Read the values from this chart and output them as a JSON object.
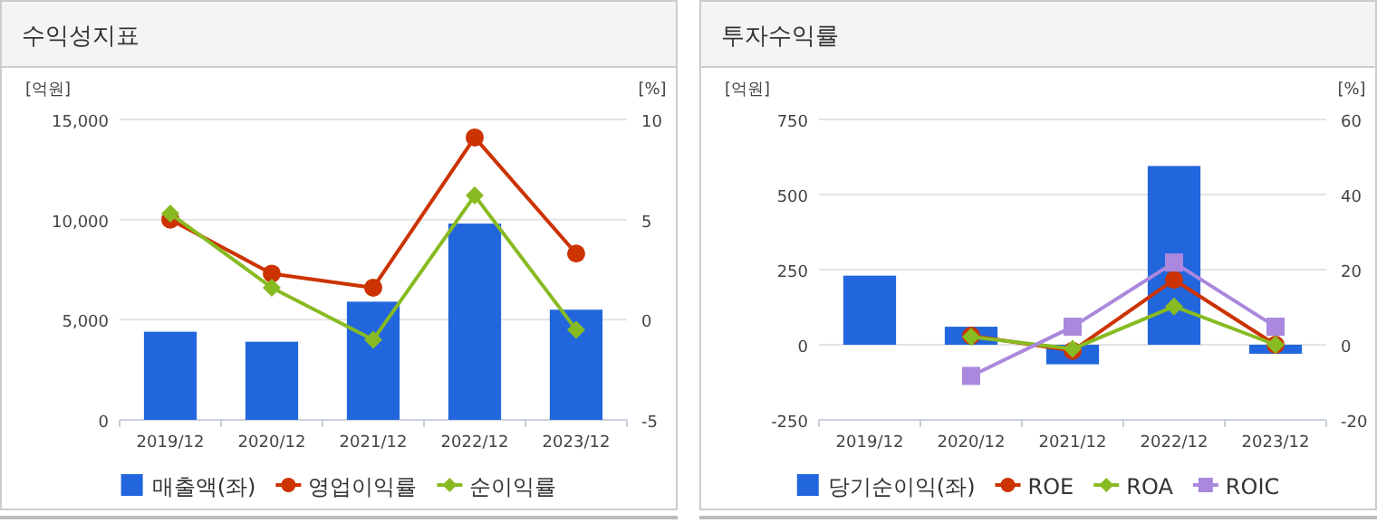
{
  "chart_data": [
    {
      "type": "bar",
      "title": "수익성지표",
      "ylabel": "[억원]",
      "y2label": "[%]",
      "categories": [
        "2019/12",
        "2020/12",
        "2021/12",
        "2022/12",
        "2023/12"
      ],
      "series": [
        {
          "name": "매출액(좌)",
          "color": "#2266dd",
          "values": [
            4400,
            3900,
            5900,
            9800,
            5500
          ]
        },
        {
          "name": "영업이익률",
          "type": "line",
          "axis": "y2",
          "marker": "circle",
          "color": "#cc3300",
          "values": [
            5.0,
            2.3,
            1.6,
            9.1,
            3.3
          ]
        },
        {
          "name": "순이익률",
          "type": "line",
          "axis": "y2",
          "marker": "diamond",
          "color": "#88bb22",
          "values": [
            5.3,
            1.6,
            -1.0,
            6.2,
            -0.5
          ]
        }
      ],
      "ylim": [
        0,
        15000
      ],
      "yticks": [
        0,
        {
          "value": 5000,
          "label": "5,000"
        },
        {
          "value": 10000,
          "label": "10,000"
        },
        {
          "value": 15000,
          "label": "15,000"
        }
      ],
      "y2lim": [
        -5,
        10
      ],
      "y2ticks": [
        -5,
        0,
        5,
        10
      ],
      "grid": "y",
      "legend": "bottom"
    },
    {
      "type": "bar",
      "title": "투자수익률",
      "ylabel": "[억원]",
      "y2label": "[%]",
      "categories": [
        "2019/12",
        "2020/12",
        "2021/12",
        "2022/12",
        "2023/12"
      ],
      "series": [
        {
          "name": "당기순이익(좌)",
          "color": "#2266dd",
          "values": [
            230,
            60,
            -65,
            595,
            -30
          ]
        },
        {
          "name": "ROE",
          "type": "line",
          "axis": "y2",
          "marker": "circle",
          "color": "#cc3300",
          "values": [
            null,
            2.4,
            -1.6,
            17.3,
            0
          ]
        },
        {
          "name": "ROA",
          "type": "line",
          "axis": "y2",
          "marker": "diamond",
          "color": "#88bb22",
          "values": [
            null,
            2.1,
            -1.1,
            10.2,
            0
          ]
        },
        {
          "name": "ROIC",
          "type": "line",
          "axis": "y2",
          "marker": "square",
          "color": "#aa88dd",
          "values": [
            null,
            -8.3,
            4.8,
            21.9,
            4.8
          ]
        }
      ],
      "ylim": [
        -250,
        750
      ],
      "yticks": [
        -250,
        0,
        250,
        500,
        750
      ],
      "y2lim": [
        -20,
        60
      ],
      "y2ticks": [
        -20,
        0,
        20,
        40,
        60
      ],
      "grid": "y",
      "legend": "bottom"
    }
  ]
}
